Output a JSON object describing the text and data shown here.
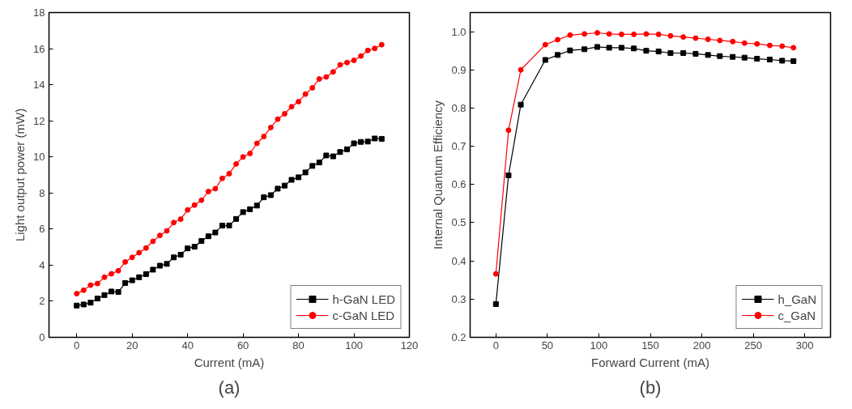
{
  "chart_data": [
    {
      "type": "line",
      "xlabel": "Current (mA)",
      "ylabel": "Light output power (mW)",
      "annotations": [
        "(a)"
      ],
      "x": [
        0,
        2.5,
        5,
        7.5,
        10,
        12.5,
        15,
        17.5,
        20,
        22.5,
        25,
        27.5,
        30,
        32.5,
        35,
        37.5,
        40,
        42.5,
        45,
        47.5,
        50,
        52.5,
        55,
        57.5,
        60,
        62.5,
        65,
        67.5,
        70,
        72.5,
        75,
        77.5,
        80,
        82.5,
        85,
        87.5,
        90,
        92.5,
        95,
        97.5,
        100,
        102.5,
        105,
        107.5,
        110
      ],
      "series": [
        {
          "name": "h-GaN LED",
          "color": "#000000",
          "marker": "square",
          "values": [
            1.76,
            1.82,
            1.92,
            2.15,
            2.34,
            2.54,
            2.51,
            3.01,
            3.16,
            3.33,
            3.5,
            3.75,
            3.97,
            4.07,
            4.43,
            4.58,
            4.93,
            5.02,
            5.34,
            5.6,
            5.81,
            6.19,
            6.2,
            6.56,
            6.94,
            7.1,
            7.3,
            7.76,
            7.88,
            8.24,
            8.41,
            8.73,
            8.87,
            9.14,
            9.5,
            9.69,
            10.08,
            10.03,
            10.27,
            10.42,
            10.75,
            10.83,
            10.85,
            11.02,
            11.0
          ]
        },
        {
          "name": "c-GaN LED",
          "color": "#ff0000",
          "marker": "circle",
          "values": [
            2.42,
            2.61,
            2.89,
            2.98,
            3.33,
            3.52,
            3.69,
            4.18,
            4.43,
            4.69,
            4.95,
            5.32,
            5.65,
            5.9,
            6.36,
            6.55,
            7.06,
            7.33,
            7.6,
            8.08,
            8.24,
            8.81,
            9.07,
            9.61,
            10.0,
            10.19,
            10.75,
            11.13,
            11.63,
            12.09,
            12.39,
            12.78,
            13.06,
            13.48,
            13.83,
            14.32,
            14.43,
            14.71,
            15.1,
            15.23,
            15.35,
            15.59,
            15.9,
            16.01,
            16.22
          ]
        }
      ],
      "xlim": [
        -10,
        120
      ],
      "xticks": [
        0,
        20,
        40,
        60,
        80,
        100,
        120
      ],
      "ylim": [
        0,
        18
      ],
      "yticks": [
        0,
        2,
        4,
        6,
        8,
        10,
        12,
        14,
        16,
        18
      ],
      "legend": "bottom right",
      "grid": false,
      "line_style": "solid"
    },
    {
      "type": "line",
      "xlabel": "Forward Current (mA)",
      "ylabel": "Internal Quantum Efficiency",
      "annotations": [
        "(b)"
      ],
      "x": [
        0,
        12.3,
        24.2,
        48,
        60,
        72,
        86,
        98.5,
        110,
        122,
        134,
        146,
        158,
        169.6,
        182,
        194,
        206,
        217.5,
        230,
        241.5,
        253.6,
        266,
        278,
        289
      ],
      "series": [
        {
          "name": "h_GaN",
          "color": "#000000",
          "marker": "square",
          "values": [
            0.287,
            0.624,
            0.809,
            0.926,
            0.939,
            0.951,
            0.954,
            0.96,
            0.958,
            0.958,
            0.956,
            0.95,
            0.948,
            0.944,
            0.944,
            0.942,
            0.939,
            0.936,
            0.934,
            0.932,
            0.929,
            0.927,
            0.924,
            0.923
          ]
        },
        {
          "name": "c_GaN",
          "color": "#ff0000",
          "marker": "circle",
          "values": [
            0.366,
            0.742,
            0.9,
            0.966,
            0.979,
            0.991,
            0.994,
            0.997,
            0.994,
            0.993,
            0.993,
            0.994,
            0.993,
            0.989,
            0.986,
            0.983,
            0.98,
            0.977,
            0.974,
            0.97,
            0.968,
            0.964,
            0.962,
            0.958
          ]
        }
      ],
      "xlim": [
        -25,
        325
      ],
      "xticks": [
        0,
        50,
        100,
        150,
        200,
        250,
        300
      ],
      "ylim": [
        0.2,
        1.05
      ],
      "yticks": [
        0.2,
        0.3,
        0.4,
        0.5,
        0.6,
        0.7,
        0.8,
        0.9,
        {
          "value": 1.0,
          "label": "1.0"
        }
      ],
      "legend": "bottom right",
      "grid": false,
      "line_style": "solid"
    }
  ]
}
